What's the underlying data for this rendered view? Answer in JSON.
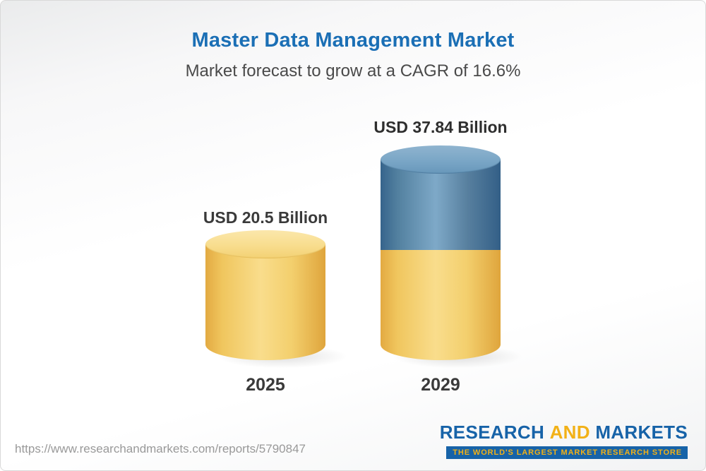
{
  "header": {
    "title": "Master Data Management Market",
    "subtitle": "Market forecast to grow at a CAGR of 16.6%"
  },
  "chart_data": {
    "type": "bar",
    "style": "3d-cylinder",
    "categories": [
      "2025",
      "2029"
    ],
    "values": [
      20.5,
      37.84
    ],
    "value_labels": [
      "USD 20.5 Billion",
      "USD 37.84 Billion"
    ],
    "unit": "USD Billion",
    "cagr_percent": 16.6,
    "title": "Master Data Management Market",
    "xlabel": "",
    "ylabel": "",
    "legend": "off",
    "grid": "off",
    "colors": {
      "bar_2025": "#f6d171",
      "bar_2029_base": "#f6d171",
      "bar_2029_growth": "#5d8cab",
      "title_blue": "#1b6fb5",
      "label_gray": "#3a3a3a"
    }
  },
  "footer": {
    "url": "https://www.researchandmarkets.com/reports/5790847",
    "logo": {
      "part1": "RESEARCH",
      "part2": "AND",
      "part3": "MARKETS",
      "tagline": "THE WORLD'S LARGEST MARKET RESEARCH STORE"
    }
  }
}
